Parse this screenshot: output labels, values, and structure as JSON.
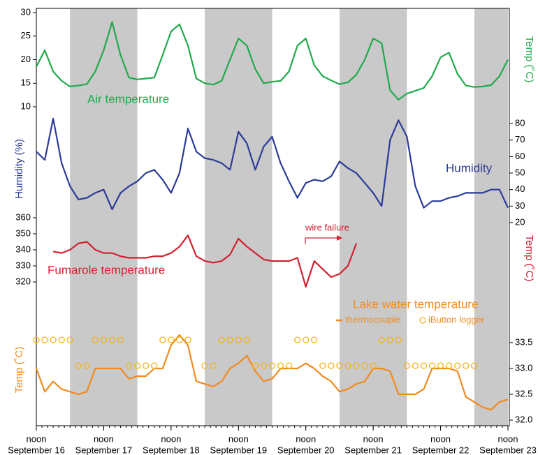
{
  "chart_data": {
    "type": "line",
    "x": [
      "September 16 12:00",
      "September 16 15:00",
      "September 16 18:00",
      "September 16 21:00",
      "September 17 00:00",
      "September 17 03:00",
      "September 17 06:00",
      "September 17 09:00",
      "September 17 12:00",
      "September 17 15:00",
      "September 17 18:00",
      "September 17 21:00",
      "September 18 00:00",
      "September 18 03:00",
      "September 18 06:00",
      "September 18 09:00",
      "September 18 12:00",
      "September 18 15:00",
      "September 18 18:00",
      "September 18 21:00",
      "September 19 00:00",
      "September 19 03:00",
      "September 19 06:00",
      "September 19 09:00",
      "September 19 12:00",
      "September 19 15:00",
      "September 19 18:00",
      "September 19 21:00",
      "September 20 00:00",
      "September 20 03:00",
      "September 20 06:00",
      "September 20 09:00",
      "September 20 12:00",
      "September 20 15:00",
      "September 20 18:00",
      "September 20 21:00",
      "September 21 00:00",
      "September 21 03:00",
      "September 21 06:00",
      "September 21 09:00",
      "September 21 12:00",
      "September 21 15:00",
      "September 21 18:00",
      "September 21 21:00",
      "September 22 00:00",
      "September 22 03:00",
      "September 22 06:00",
      "September 22 09:00",
      "September 22 12:00",
      "September 22 15:00",
      "September 22 18:00",
      "September 22 21:00",
      "September 23 00:00",
      "September 23 03:00",
      "September 23 06:00",
      "September 23 09:00",
      "September 23 12:00"
    ],
    "xlim": [
      "September 16 12:00",
      "September 23 12:00"
    ],
    "xticks": [
      {
        "value": "September 16 12:00",
        "label": "noon",
        "date": "September 16"
      },
      {
        "value": "September 17 12:00",
        "label": "noon",
        "date": "September 17"
      },
      {
        "value": "September 18 12:00",
        "label": "noon",
        "date": "September 18"
      },
      {
        "value": "September 19 12:00",
        "label": "noon",
        "date": "September 19"
      },
      {
        "value": "September 20 12:00",
        "label": "noon",
        "date": "September 20"
      },
      {
        "value": "September 21 12:00",
        "label": "noon",
        "date": "September 21"
      },
      {
        "value": "September 22 12:00",
        "label": "noon",
        "date": "September 22"
      },
      {
        "value": "September 23 12:00",
        "label": "noon",
        "date": "September 23"
      }
    ],
    "panels": [
      {
        "label": "Air temperature",
        "ylabel": "Temp (˚C)",
        "axis_side": "left",
        "ylabel_side": "right",
        "ylim": [
          10,
          30
        ],
        "yticks": [
          10,
          15,
          20,
          25,
          30
        ],
        "series": [
          {
            "name": "Air temperature",
            "type": "line",
            "color": "#1faa4b",
            "values": [
              18.5,
              22,
              17.5,
              15.5,
              14.3,
              14.5,
              14.8,
              17.5,
              22,
              28,
              21,
              16.2,
              15.8,
              16,
              16.2,
              21,
              26,
              27.5,
              23,
              16,
              15,
              14.7,
              15.5,
              20,
              24.5,
              23,
              18,
              15,
              15.3,
              15.5,
              17.5,
              23,
              24.5,
              18.8,
              16.5,
              15.6,
              14.8,
              15.2,
              16.8,
              20,
              24.5,
              23.5,
              13.5,
              11.5,
              12.8,
              13.4,
              14,
              16.5,
              20.5,
              21.5,
              17,
              14.5,
              14.2,
              14.3,
              14.6,
              16.5,
              20
            ]
          }
        ]
      },
      {
        "label": "Humidity",
        "ylabel": "Humidity (%)",
        "axis_side": "right",
        "ylabel_side": "left",
        "ylim": [
          20,
          80
        ],
        "yticks": [
          20,
          30,
          40,
          50,
          60,
          70,
          80
        ],
        "series": [
          {
            "name": "Humidity",
            "type": "line",
            "color": "#2c3b98",
            "values": [
              63,
              58,
              83,
              56,
              42,
              34,
              35,
              38,
              40,
              28,
              38,
              42,
              45,
              50,
              52,
              46,
              38,
              50,
              77,
              63,
              59,
              58,
              56,
              52,
              75,
              68,
              52,
              66,
              72,
              56,
              45,
              35,
              44,
              46,
              45,
              48,
              57,
              53,
              50,
              44,
              38,
              30,
              70,
              82,
              72,
              42,
              29,
              33,
              33,
              35,
              36,
              38,
              38,
              38,
              40,
              40,
              29
            ]
          }
        ]
      },
      {
        "label": "Fumarole temperature",
        "ylabel": "Temp (˚C)",
        "axis_side": "left",
        "ylabel_side": "right",
        "ylim": [
          320,
          360
        ],
        "yticks": [
          320,
          330,
          340,
          350,
          360
        ],
        "annotation": "wire failure",
        "series": [
          {
            "name": "Fumarole temperature",
            "type": "line",
            "color": "#d3202f",
            "values": [
              null,
              null,
              339,
              338,
              340,
              344,
              345,
              340,
              338,
              338,
              336,
              335,
              335,
              335,
              336,
              336,
              338,
              342,
              349,
              336,
              333,
              332,
              333,
              337,
              347,
              342,
              338,
              334,
              333,
              333,
              333,
              335,
              317,
              333,
              328,
              323,
              325,
              330,
              344,
              null,
              null,
              null,
              null,
              null,
              null,
              null,
              null,
              null,
              null,
              null,
              null,
              null,
              null,
              null,
              null,
              null,
              null
            ]
          }
        ]
      },
      {
        "label": "Lake water temperature",
        "ylabel": "Temp (˚C)",
        "axis_side": "right",
        "ylabel_side": "left",
        "ylim": [
          32,
          33.5
        ],
        "yticks": [
          {
            "value": 32,
            "label": "32.0"
          },
          {
            "value": 32.5,
            "label": "32.5"
          },
          {
            "value": 33,
            "label": "33.0"
          },
          33.5
        ],
        "series": [
          {
            "name": "thermocouple",
            "type": "line",
            "color": "#f28a1e",
            "values": [
              33,
              32.55,
              32.75,
              32.6,
              32.55,
              32.5,
              32.55,
              33,
              33,
              33,
              33,
              32.8,
              32.85,
              32.85,
              33,
              33,
              33.45,
              33.65,
              33.45,
              32.75,
              32.7,
              32.65,
              32.75,
              33,
              33.1,
              33.25,
              32.95,
              32.75,
              32.8,
              33,
              33,
              33,
              33.1,
              33,
              32.85,
              32.75,
              32.55,
              32.6,
              32.7,
              32.75,
              33,
              33,
              32.95,
              32.5,
              32.5,
              32.5,
              32.6,
              33,
              33,
              33,
              32.95,
              32.45,
              32.35,
              32.25,
              32.2,
              32.35,
              32.4
            ]
          },
          {
            "name": "iButton logger",
            "type": "scatter",
            "color": "#f5b21b",
            "values": [
              33.5,
              33.5,
              33.5,
              33.5,
              33.5,
              33,
              33,
              33.5,
              33.5,
              33.5,
              33.5,
              33,
              33,
              33,
              33,
              33.5,
              33.5,
              33.5,
              33.5,
              null,
              33,
              33,
              33.5,
              33.5,
              33.5,
              33.5,
              33,
              33,
              33,
              33,
              33,
              33.5,
              33.5,
              33.5,
              33,
              33,
              33,
              33,
              33,
              33,
              33,
              33.5,
              33.5,
              33.5,
              33,
              33,
              33,
              33,
              33,
              33,
              33,
              33,
              33,
              null,
              null,
              null,
              null
            ]
          }
        ]
      }
    ]
  }
}
